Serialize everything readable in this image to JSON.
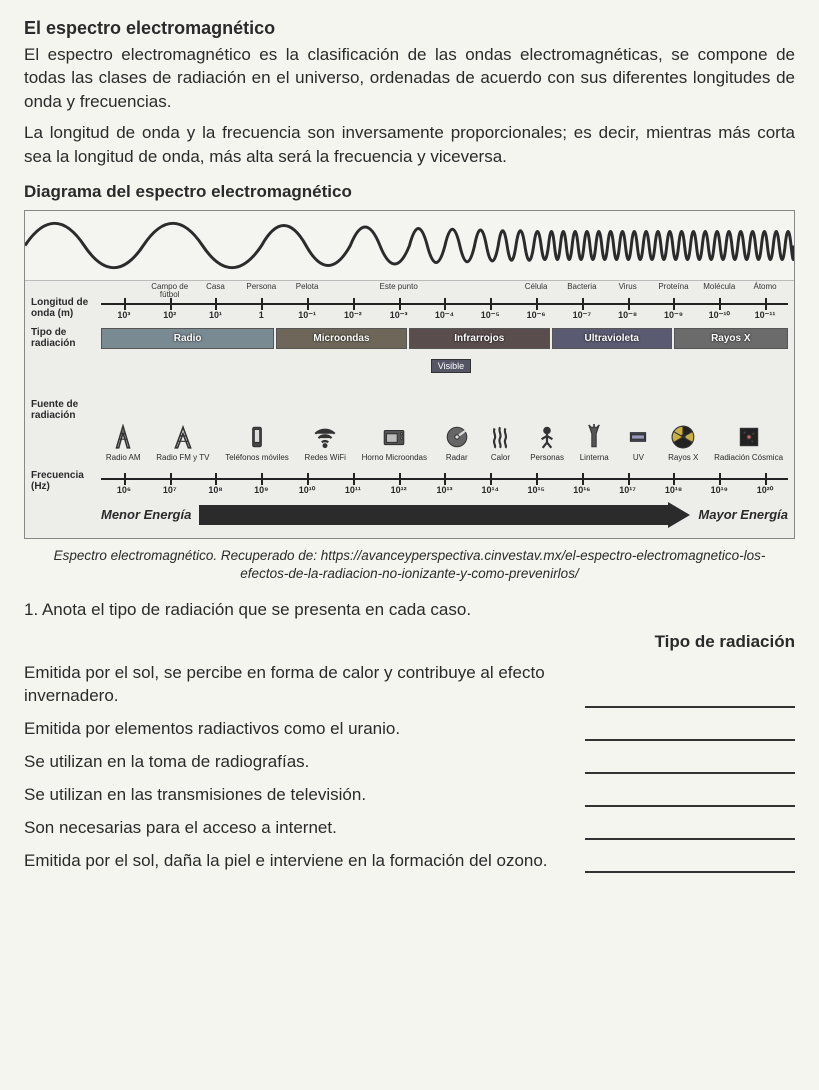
{
  "title": "El espectro electromagnético",
  "para1": "El espectro electromagnético es la clasificación de las ondas electromagnéticas, se compone de todas las clases de radiación en el universo, ordenadas de acuerdo con sus diferentes longitudes de onda y frecuencias.",
  "para2": "La longitud de onda y la frecuencia son inversamente proporcionales; es decir, mientras más corta sea la longitud de onda, más alta será la frecuencia y viceversa.",
  "subtitle": "Diagrama del espectro electromagnético",
  "diagram": {
    "wave_color": "#2b2b2b",
    "wavelength_axis": {
      "label": "Longitud de onda (m)",
      "top_labels": [
        "",
        "Campo de fútbol",
        "Casa",
        "Persona",
        "Pelota",
        "",
        "Este punto",
        "",
        "",
        "Célula",
        "Bacteria",
        "Virus",
        "Proteína",
        "Molécula",
        "Átomo"
      ],
      "ticks": [
        "10³",
        "10²",
        "10¹",
        "1",
        "10⁻¹",
        "10⁻²",
        "10⁻³",
        "10⁻⁴",
        "10⁻⁵",
        "10⁻⁶",
        "10⁻⁷",
        "10⁻⁸",
        "10⁻⁹",
        "10⁻¹⁰",
        "10⁻¹¹"
      ]
    },
    "radiation_type": {
      "label": "Tipo de radiación",
      "bands": [
        {
          "name": "Radio",
          "flex": 3.2,
          "color": "#7a8a92"
        },
        {
          "name": "Microondas",
          "flex": 2.4,
          "color": "#6e6759"
        },
        {
          "name": "Infrarrojos",
          "flex": 2.6,
          "color": "#5a4d4d"
        },
        {
          "name": "Ultravioleta",
          "flex": 2.2,
          "color": "#5a5a72"
        },
        {
          "name": "Rayos X",
          "flex": 2.1,
          "color": "#6b6b6b"
        }
      ],
      "visible_label": "Visible"
    },
    "sources": {
      "label": "Fuente de radiación",
      "items": [
        {
          "name": "Radio AM",
          "icon": "tower"
        },
        {
          "name": "Radio FM y TV",
          "icon": "tower2"
        },
        {
          "name": "Teléfonos móviles",
          "icon": "phone"
        },
        {
          "name": "Redes WiFi",
          "icon": "wifi"
        },
        {
          "name": "Horno Microondas",
          "icon": "oven"
        },
        {
          "name": "Radar",
          "icon": "radar"
        },
        {
          "name": "Calor",
          "icon": "heat"
        },
        {
          "name": "Personas",
          "icon": "person"
        },
        {
          "name": "Linterna",
          "icon": "torch"
        },
        {
          "name": "UV",
          "icon": "uv"
        },
        {
          "name": "Rayos X",
          "icon": "radiation"
        },
        {
          "name": "Radiación Cósmica",
          "icon": "cosmic"
        }
      ]
    },
    "frequency_axis": {
      "label": "Frecuencia (Hz)",
      "ticks": [
        "10⁶",
        "10⁷",
        "10⁸",
        "10⁹",
        "10¹⁰",
        "10¹¹",
        "10¹²",
        "10¹³",
        "10¹⁴",
        "10¹⁵",
        "10¹⁶",
        "10¹⁷",
        "10¹⁸",
        "10¹⁹",
        "10²⁰"
      ]
    },
    "energy": {
      "low": "Menor Energía",
      "high": "Mayor Energía",
      "arrow_color": "#2b2b2b"
    }
  },
  "caption": "Espectro electromagnético. Recuperado de: https://avanceyperspectiva.cinvestav.mx/el-espectro-electromagnetico-los-efectos-de-la-radiacion-no-ionizante-y-como-prevenirlos/",
  "question_intro": "1. Anota el tipo de radiación que se presenta en cada caso.",
  "answer_header": "Tipo de radiación",
  "items": [
    "Emitida por el sol, se percibe en forma de calor y contribuye al efecto invernadero.",
    "Emitida por elementos radiactivos como el uranio.",
    "Se utilizan en la toma de radiografías.",
    "Se utilizan en las transmisiones de televisión.",
    "Son necesarias para el acceso a internet.",
    "Emitida por el sol, daña la piel e interviene en la formación del ozono."
  ]
}
